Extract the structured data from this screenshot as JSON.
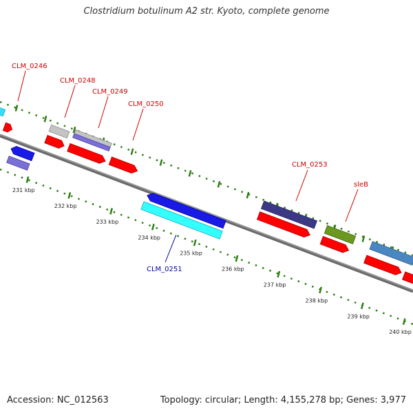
{
  "title": "Clostridium botulinum A2 str. Kyoto, complete genome",
  "footer": {
    "accession": "Accession: NC_012563",
    "summary": "Topology: circular; Length: 4,155,278 bp; Genes: 3,977"
  },
  "colors": {
    "backbone": "#808080",
    "dot_track": "#2e7d14",
    "label_forward": "#cc0000",
    "label_reverse": "#0000aa"
  },
  "ticks": [
    {
      "label": "231 kbp"
    },
    {
      "label": "232 kbp"
    },
    {
      "label": "233 kbp"
    },
    {
      "label": "234 kbp"
    },
    {
      "label": "235 kbp"
    },
    {
      "label": "236 kbp"
    },
    {
      "label": "237 kbp"
    },
    {
      "label": "238 kbp"
    },
    {
      "label": "239 kbp"
    },
    {
      "label": "240 kbp"
    }
  ],
  "gene_labels": [
    {
      "id": "l0246",
      "text": "CLM_0246",
      "strand": "forward"
    },
    {
      "id": "l0248",
      "text": "CLM_0248",
      "strand": "forward"
    },
    {
      "id": "l0249",
      "text": "CLM_0249",
      "strand": "forward"
    },
    {
      "id": "l0250",
      "text": "CLM_0250",
      "strand": "forward"
    },
    {
      "id": "l0253",
      "text": "CLM_0253",
      "strand": "forward"
    },
    {
      "id": "lsleB",
      "text": "sleB",
      "strand": "forward"
    },
    {
      "id": "l0251",
      "text": "CLM_0251",
      "strand": "reverse"
    }
  ]
}
